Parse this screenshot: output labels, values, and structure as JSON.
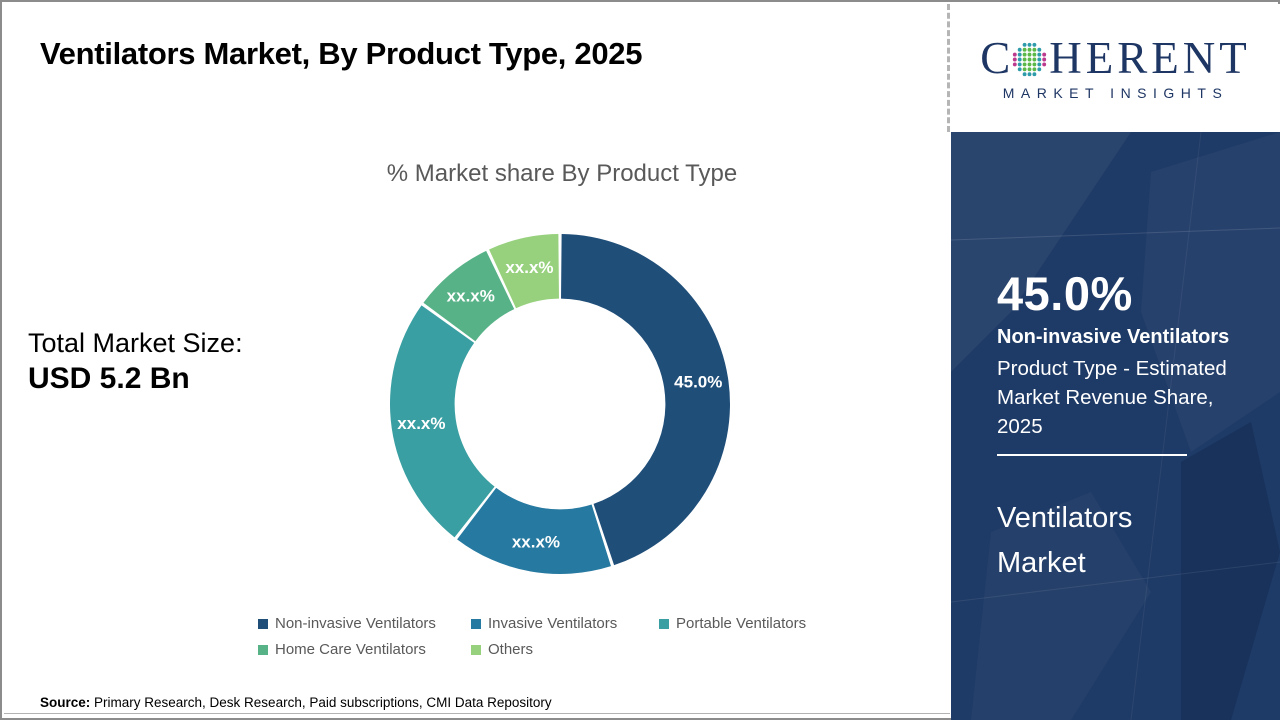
{
  "header": {
    "title": "Ventilators Market, By Product Type, 2025"
  },
  "logo": {
    "brand_c": "C",
    "brand_rest": "HERENT",
    "tagline": "MARKET INSIGHTS",
    "brand_color": "#1E3664",
    "globe_colors": {
      "teal": "#2E9BAB",
      "green": "#5CB847",
      "magenta": "#BB3A8E"
    }
  },
  "left": {
    "total_size_label": "Total Market Size:",
    "total_size_value": "USD 5.2 Bn",
    "source_label": "Source:",
    "source_text": " Primary Research, Desk Research, Paid subscriptions, CMI Data Repository"
  },
  "chart_data": {
    "type": "pie",
    "subtype": "donut",
    "title": "% Market share By Product Type",
    "categories": [
      "Non-invasive Ventilators",
      "Invasive Ventilators",
      "Portable Ventilators",
      "Home Care Ventilators",
      "Others"
    ],
    "values": [
      45.0,
      15.5,
      24.5,
      8.0,
      7.0
    ],
    "slice_labels": [
      "45.0%",
      "xx.x%",
      "xx.x%",
      "xx.x%",
      "xx.x%"
    ],
    "colors": [
      "#1F4E79",
      "#2679A0",
      "#3A9FA2",
      "#57B287",
      "#97D17E"
    ],
    "start_angle_deg": 0,
    "inner_radius_ratio": 0.62,
    "legend_position": "bottom"
  },
  "panel": {
    "background": "#1E3A66",
    "stat_value": "45.0%",
    "stat_title": "Non-invasive Ventilators",
    "stat_sub_lines": [
      "Product Type - Estimated",
      "Market Revenue Share,",
      "2025"
    ],
    "market_lines": [
      "Ventilators",
      "Market"
    ]
  }
}
